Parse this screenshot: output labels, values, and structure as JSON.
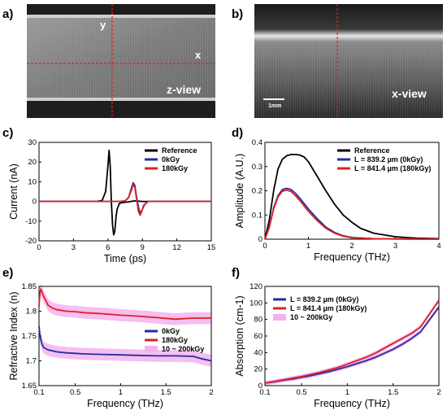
{
  "panel_labels": {
    "a": "a)",
    "b": "b)",
    "c": "c)",
    "d": "d)",
    "e": "e)",
    "f": "f)"
  },
  "image_a": {
    "label_y": "y",
    "label_x": "x",
    "view_label": "z-view"
  },
  "image_b": {
    "scale_label": "1mm",
    "view_label": "x-view"
  },
  "chart_data": [
    {
      "id": "c",
      "type": "line",
      "xlabel": "Time (ps)",
      "ylabel": "Current (nA)",
      "xlim": [
        0,
        15
      ],
      "ylim": [
        -20,
        30
      ],
      "xticks": [
        "0",
        "3",
        "6",
        "9",
        "12",
        "15"
      ],
      "yticks": [
        "-20",
        "-10",
        "0",
        "10",
        "20",
        "30"
      ],
      "legend_position": "top-right",
      "series": [
        {
          "name": "Reference",
          "color": "#000000",
          "x": [
            0,
            4,
            5,
            5.5,
            5.8,
            6.0,
            6.1,
            6.2,
            6.3,
            6.4,
            6.5,
            6.6,
            6.7,
            6.8,
            7.0,
            7.3,
            7.8,
            8.3,
            9,
            10,
            12,
            15
          ],
          "y": [
            0,
            0,
            0,
            0.5,
            5,
            18,
            26,
            18,
            0,
            -12,
            -17,
            -15,
            -8,
            -4,
            -1,
            -0.5,
            -0.2,
            0.3,
            0,
            0,
            0,
            0
          ]
        },
        {
          "name": "0kGy",
          "color": "#1f2f9f",
          "x": [
            0,
            6,
            7,
            7.5,
            7.8,
            8.0,
            8.2,
            8.35,
            8.5,
            8.7,
            8.85,
            9.0,
            9.2,
            9.5,
            10,
            11,
            15
          ],
          "y": [
            0,
            0,
            0,
            0.3,
            2,
            6,
            9.5,
            8,
            2,
            -4,
            -6,
            -4,
            -1.5,
            0,
            0,
            0,
            0
          ]
        },
        {
          "name": "180kGy",
          "color": "#e02020",
          "x": [
            0,
            6,
            7,
            7.5,
            7.8,
            8.0,
            8.2,
            8.35,
            8.5,
            8.65,
            8.8,
            8.95,
            9.1,
            9.5,
            10,
            11,
            15
          ],
          "y": [
            0,
            0,
            0,
            0.3,
            2,
            5,
            8.5,
            7,
            1,
            -5,
            -7,
            -5,
            -2,
            0,
            0,
            0,
            0
          ]
        }
      ]
    },
    {
      "id": "d",
      "type": "line",
      "xlabel": "Frequency (THz)",
      "ylabel": "Amplitude (A.U.)",
      "xlim": [
        0,
        4
      ],
      "ylim": [
        0,
        0.4
      ],
      "xticks": [
        "0",
        "1",
        "2",
        "3",
        "4"
      ],
      "yticks": [
        "0",
        "0.1",
        "0.2",
        "0.3",
        "0.4"
      ],
      "legend_position": "top-right",
      "series": [
        {
          "name": "Reference",
          "color": "#000000",
          "x": [
            0,
            0.1,
            0.2,
            0.3,
            0.4,
            0.5,
            0.6,
            0.7,
            0.8,
            0.9,
            1.0,
            1.2,
            1.4,
            1.6,
            1.8,
            2.0,
            2.2,
            2.5,
            3.0,
            3.5,
            4.0
          ],
          "y": [
            0,
            0.08,
            0.2,
            0.29,
            0.33,
            0.345,
            0.35,
            0.35,
            0.348,
            0.34,
            0.32,
            0.26,
            0.2,
            0.145,
            0.1,
            0.07,
            0.045,
            0.025,
            0.01,
            0.004,
            0.002
          ]
        },
        {
          "name": "L = 839.2 µm (0kGy)",
          "color": "#1f2f9f",
          "x": [
            0,
            0.1,
            0.2,
            0.3,
            0.4,
            0.5,
            0.6,
            0.7,
            0.8,
            1.0,
            1.2,
            1.4,
            1.6,
            1.8,
            2.0,
            2.5,
            3,
            4
          ],
          "y": [
            0,
            0.05,
            0.13,
            0.18,
            0.205,
            0.21,
            0.205,
            0.19,
            0.17,
            0.125,
            0.085,
            0.05,
            0.028,
            0.014,
            0.007,
            0.002,
            0.001,
            0
          ]
        },
        {
          "name": "L = 841.4 µm (180kGy)",
          "color": "#e02020",
          "x": [
            0,
            0.1,
            0.2,
            0.3,
            0.4,
            0.5,
            0.6,
            0.7,
            0.8,
            1.0,
            1.2,
            1.4,
            1.6,
            1.8,
            2.0,
            2.5,
            3,
            4
          ],
          "y": [
            0,
            0.05,
            0.125,
            0.175,
            0.198,
            0.203,
            0.197,
            0.18,
            0.16,
            0.115,
            0.077,
            0.045,
            0.025,
            0.012,
            0.006,
            0.002,
            0.001,
            0
          ]
        }
      ]
    },
    {
      "id": "e",
      "type": "line",
      "xlabel": "Frequency (THz)",
      "ylabel": "Refractive Index (n)",
      "xlim": [
        0.1,
        2
      ],
      "ylim": [
        1.65,
        1.85
      ],
      "xticks": [
        "0.1",
        "0.5",
        "1",
        "1.5",
        "2"
      ],
      "xtick_values": [
        0.1,
        0.5,
        1,
        1.5,
        2
      ],
      "yticks": [
        "1.65",
        "1.7",
        "1.75",
        "1.8",
        "1.85"
      ],
      "legend_position": "center-right",
      "series": [
        {
          "name": "0kGy",
          "color": "#1f2f9f",
          "x": [
            0.1,
            0.11,
            0.13,
            0.15,
            0.2,
            0.25,
            0.3,
            0.4,
            0.5,
            0.6,
            0.8,
            1.0,
            1.2,
            1.4,
            1.6,
            1.8,
            1.9,
            2.0
          ],
          "y": [
            1.77,
            1.752,
            1.735,
            1.727,
            1.722,
            1.72,
            1.718,
            1.716,
            1.715,
            1.714,
            1.713,
            1.712,
            1.711,
            1.71,
            1.71,
            1.709,
            1.704,
            1.7
          ]
        },
        {
          "name": "180kGy",
          "color": "#e02020",
          "x": [
            0.1,
            0.11,
            0.12,
            0.13,
            0.15,
            0.18,
            0.2,
            0.25,
            0.3,
            0.4,
            0.5,
            0.6,
            0.8,
            1.0,
            1.2,
            1.4,
            1.6,
            1.8,
            2.0
          ],
          "y": [
            1.81,
            1.835,
            1.845,
            1.84,
            1.83,
            1.82,
            1.812,
            1.806,
            1.803,
            1.8,
            1.799,
            1.797,
            1.795,
            1.792,
            1.79,
            1.787,
            1.784,
            1.786,
            1.786
          ]
        },
        {
          "name": "10 ~ 200kGy",
          "color": "#f4b3ee",
          "band": true,
          "halfwidth": 0.012
        }
      ]
    },
    {
      "id": "f",
      "type": "line",
      "xlabel": "Frequency (THz)",
      "ylabel": "Absorption (cm-1)",
      "xlim": [
        0.1,
        2
      ],
      "ylim": [
        0,
        120
      ],
      "xticks": [
        "0.1",
        "0.5",
        "1",
        "1.5",
        "2"
      ],
      "xtick_values": [
        0.1,
        0.5,
        1,
        1.5,
        2
      ],
      "yticks": [
        "0",
        "20",
        "40",
        "60",
        "80",
        "100",
        "120"
      ],
      "legend_position": "top-left",
      "series": [
        {
          "name": "L = 839.2 µm (0kGy)",
          "color": "#1f2f9f",
          "x": [
            0.1,
            0.2,
            0.3,
            0.4,
            0.5,
            0.6,
            0.7,
            0.8,
            0.9,
            1.0,
            1.1,
            1.2,
            1.3,
            1.4,
            1.5,
            1.6,
            1.7,
            1.8,
            1.9,
            2.0
          ],
          "y": [
            3,
            4.5,
            6.5,
            8,
            10,
            12,
            14.5,
            17,
            20,
            23,
            26.5,
            30,
            34,
            39,
            44,
            50,
            57,
            65,
            80,
            95
          ]
        },
        {
          "name": "L = 841.4 µm (180kGy)",
          "color": "#e02020",
          "x": [
            0.1,
            0.2,
            0.3,
            0.4,
            0.5,
            0.6,
            0.7,
            0.8,
            0.9,
            1.0,
            1.1,
            1.2,
            1.3,
            1.4,
            1.5,
            1.6,
            1.7,
            1.8,
            1.9,
            2.0
          ],
          "y": [
            3,
            5,
            7,
            9,
            11,
            13.5,
            16,
            19,
            22,
            26,
            30,
            34,
            39,
            45,
            51,
            57,
            63,
            71,
            87,
            103
          ]
        },
        {
          "name": "10 ~ 200kGy",
          "color": "#f4b3ee",
          "band": true,
          "halfwidth": 2.5
        }
      ]
    }
  ]
}
